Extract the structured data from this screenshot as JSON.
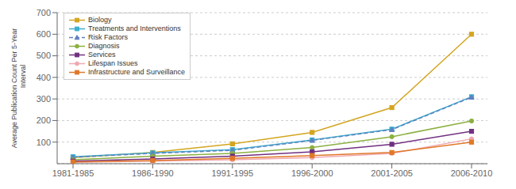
{
  "chart_data": {
    "type": "line",
    "categories": [
      "1981-1985",
      "1986-1990",
      "1991-1995",
      "1996-2000",
      "2001-2005",
      "2006-2010"
    ],
    "series": [
      {
        "name": "Biology",
        "color": "#D4A520",
        "line_style": "solid",
        "marker": "square",
        "values": [
          28,
          52,
          92,
          145,
          260,
          600
        ]
      },
      {
        "name": "Treatments and Interventions",
        "color": "#3AAFCF",
        "line_style": "solid",
        "marker": "square",
        "values": [
          32,
          50,
          65,
          110,
          160,
          310
        ]
      },
      {
        "name": "Risk Factors",
        "color": "#6080C0",
        "line_style": "dashed",
        "marker": "triangle",
        "values": [
          30,
          48,
          62,
          108,
          158,
          308
        ]
      },
      {
        "name": "Diagnosis",
        "color": "#8CB040",
        "line_style": "solid",
        "marker": "circle",
        "values": [
          18,
          35,
          48,
          75,
          125,
          198
        ]
      },
      {
        "name": "Services",
        "color": "#703080",
        "line_style": "solid",
        "marker": "square",
        "values": [
          12,
          22,
          35,
          55,
          90,
          150
        ]
      },
      {
        "name": "Lifespan Issues",
        "color": "#F0A8B0",
        "line_style": "solid",
        "marker": "circle",
        "values": [
          6,
          12,
          18,
          28,
          48,
          115
        ]
      },
      {
        "name": "Infrastructure and Surveillance",
        "color": "#E07828",
        "line_style": "solid",
        "marker": "square",
        "values": [
          8,
          15,
          25,
          38,
          52,
          100
        ]
      }
    ],
    "ylabel": "Average Publication Count Per 5-Year\n            Interval",
    "ylim": [
      0,
      700
    ],
    "yticks": [
      100,
      200,
      300,
      400,
      500,
      600,
      700
    ],
    "grid": true,
    "legend": "upper left"
  }
}
